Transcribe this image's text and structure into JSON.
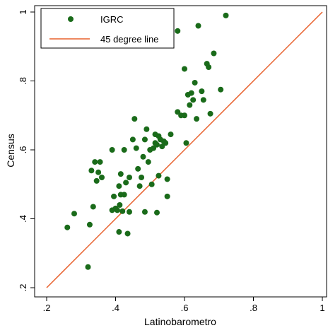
{
  "chart_data": {
    "type": "scatter",
    "xlabel": "Latinobarometro",
    "ylabel": "Census",
    "xlim": [
      0.2,
      1.0
    ],
    "ylim": [
      0.2,
      1.0
    ],
    "x_ticks": [
      0.2,
      0.4,
      0.6,
      0.8,
      1.0
    ],
    "x_tick_labels": [
      ".2",
      ".4",
      ".6",
      ".8",
      "1"
    ],
    "y_ticks": [
      0.2,
      0.4,
      0.6,
      0.8,
      1.0
    ],
    "y_tick_labels": [
      ".2",
      ".4",
      ".6",
      ".8",
      "1"
    ],
    "grid": false,
    "legend_position": "top-left",
    "series": [
      {
        "name": "IGRC",
        "kind": "points",
        "color": "#1a6b1a",
        "points": [
          [
            0.26,
            0.375
          ],
          [
            0.28,
            0.415
          ],
          [
            0.32,
            0.26
          ],
          [
            0.325,
            0.383
          ],
          [
            0.33,
            0.54
          ],
          [
            0.335,
            0.435
          ],
          [
            0.34,
            0.565
          ],
          [
            0.345,
            0.51
          ],
          [
            0.35,
            0.535
          ],
          [
            0.355,
            0.565
          ],
          [
            0.36,
            0.52
          ],
          [
            0.39,
            0.425
          ],
          [
            0.39,
            0.6
          ],
          [
            0.395,
            0.465
          ],
          [
            0.4,
            0.43
          ],
          [
            0.405,
            0.425
          ],
          [
            0.41,
            0.362
          ],
          [
            0.41,
            0.495
          ],
          [
            0.412,
            0.44
          ],
          [
            0.415,
            0.53
          ],
          [
            0.415,
            0.47
          ],
          [
            0.42,
            0.422
          ],
          [
            0.425,
            0.47
          ],
          [
            0.425,
            0.6
          ],
          [
            0.43,
            0.505
          ],
          [
            0.435,
            0.357
          ],
          [
            0.44,
            0.52
          ],
          [
            0.44,
            0.42
          ],
          [
            0.45,
            0.63
          ],
          [
            0.455,
            0.69
          ],
          [
            0.46,
            0.605
          ],
          [
            0.465,
            0.545
          ],
          [
            0.47,
            0.495
          ],
          [
            0.475,
            0.52
          ],
          [
            0.48,
            0.58
          ],
          [
            0.485,
            0.63
          ],
          [
            0.485,
            0.42
          ],
          [
            0.49,
            0.66
          ],
          [
            0.495,
            0.565
          ],
          [
            0.5,
            0.6
          ],
          [
            0.505,
            0.5
          ],
          [
            0.51,
            0.605
          ],
          [
            0.515,
            0.62
          ],
          [
            0.515,
            0.645
          ],
          [
            0.52,
            0.418
          ],
          [
            0.52,
            0.615
          ],
          [
            0.525,
            0.64
          ],
          [
            0.525,
            0.525
          ],
          [
            0.53,
            0.63
          ],
          [
            0.535,
            0.61
          ],
          [
            0.54,
            0.625
          ],
          [
            0.545,
            0.62
          ],
          [
            0.55,
            0.465
          ],
          [
            0.55,
            0.515
          ],
          [
            0.56,
            0.645
          ],
          [
            0.58,
            0.71
          ],
          [
            0.59,
            0.7
          ],
          [
            0.6,
            0.7
          ],
          [
            0.6,
            0.835
          ],
          [
            0.605,
            0.62
          ],
          [
            0.61,
            0.76
          ],
          [
            0.615,
            0.73
          ],
          [
            0.62,
            0.765
          ],
          [
            0.625,
            0.745
          ],
          [
            0.63,
            0.795
          ],
          [
            0.635,
            0.69
          ],
          [
            0.64,
            0.96
          ],
          [
            0.65,
            0.77
          ],
          [
            0.655,
            0.745
          ],
          [
            0.665,
            0.85
          ],
          [
            0.67,
            0.84
          ],
          [
            0.675,
            0.705
          ],
          [
            0.685,
            0.88
          ],
          [
            0.705,
            0.775
          ],
          [
            0.72,
            0.99
          ],
          [
            0.58,
            0.945
          ]
        ]
      },
      {
        "name": "45 degree line",
        "kind": "line",
        "color": "#e8602c",
        "points": [
          [
            0.2,
            0.2
          ],
          [
            1.0,
            1.0
          ]
        ]
      }
    ]
  }
}
